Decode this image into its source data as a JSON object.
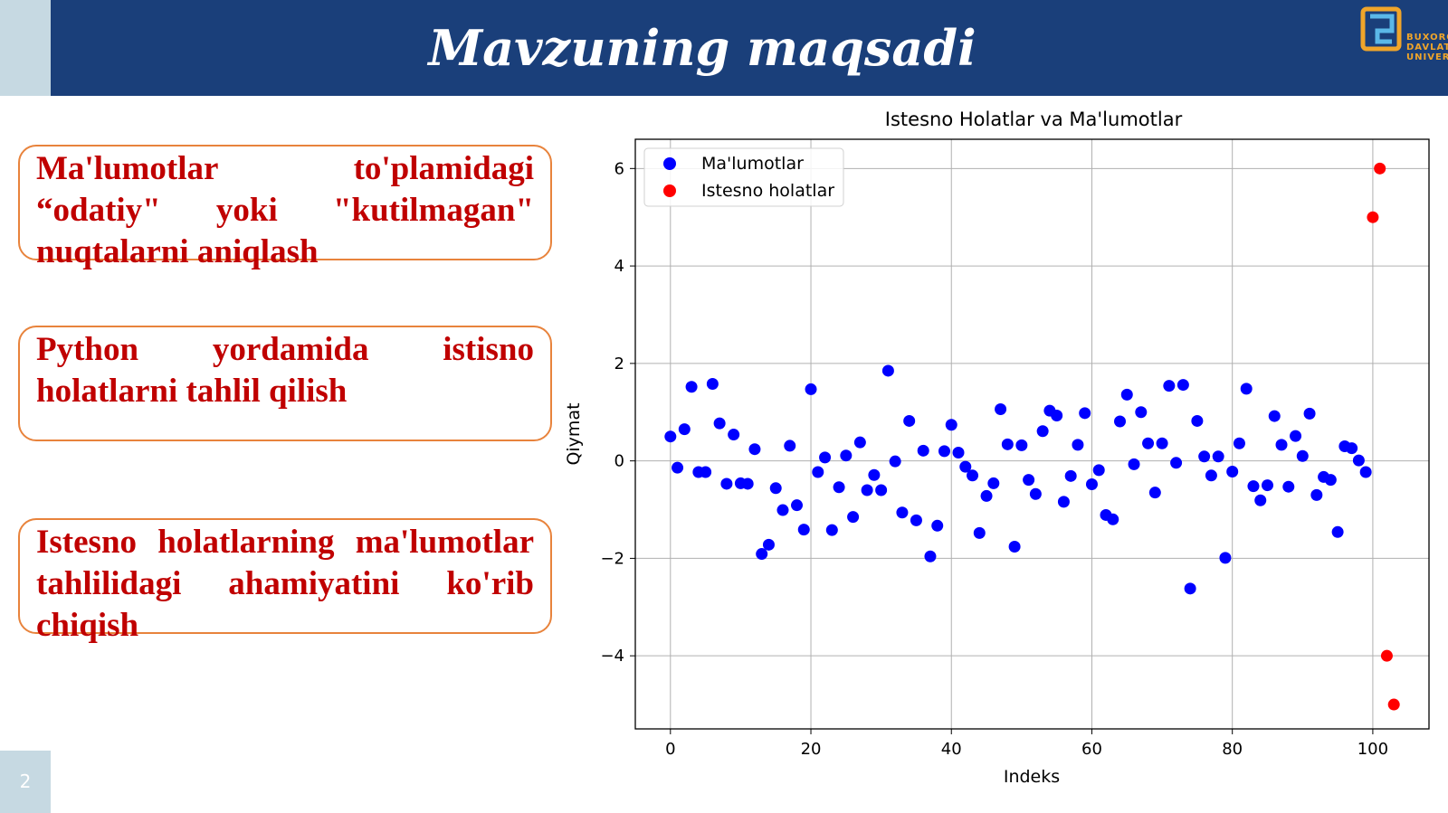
{
  "slide": {
    "title": "Mavzuning maqsadi",
    "page_number": "2",
    "logo_lines": [
      "BUXORO",
      "DAVLAT",
      "UNIVERSITETI"
    ]
  },
  "boxes": [
    {
      "text": "Ma'lumotlar to'plamidagi “odatiy\" yoki \"kutilmagan\" nuqtalarni aniqlash"
    },
    {
      "text": "Python yordamida istisno holatlarni tahlil qilish"
    },
    {
      "text": "Istesno holatlarning ma'lumotlar tahlilidagi ahamiyatini ko'rib chiqish"
    }
  ],
  "colors": {
    "banner": "#1a3f7a",
    "side_strip": "#c6d9e2",
    "box_border": "#e8833c",
    "box_text": "#c00000",
    "series_normal": "#0000ff",
    "series_outlier": "#ff0000"
  },
  "chart_data": {
    "type": "scatter",
    "title": "Istesno Holatlar va Ma'lumotlar",
    "xlabel": "Indeks",
    "ylabel": "Qiymat",
    "xlim": [
      -5,
      108
    ],
    "ylim": [
      -5.5,
      6.6
    ],
    "xticks": [
      0,
      20,
      40,
      60,
      80,
      100
    ],
    "yticks": [
      -4,
      -2,
      0,
      2,
      4,
      6
    ],
    "ytick_labels": [
      "−4",
      "−2",
      "0",
      "2",
      "4",
      "6"
    ],
    "grid": true,
    "legend_position": "upper-left",
    "series": [
      {
        "name": "Ma'lumotlar",
        "color": "#0000ff",
        "x": [
          0,
          1,
          2,
          3,
          4,
          5,
          6,
          7,
          8,
          9,
          10,
          11,
          12,
          13,
          14,
          15,
          16,
          17,
          18,
          19,
          20,
          21,
          22,
          23,
          24,
          25,
          26,
          27,
          28,
          29,
          30,
          31,
          32,
          33,
          34,
          35,
          36,
          37,
          38,
          39,
          40,
          41,
          42,
          43,
          44,
          45,
          46,
          47,
          48,
          49,
          50,
          51,
          52,
          53,
          54,
          55,
          56,
          57,
          58,
          59,
          60,
          61,
          62,
          63,
          64,
          65,
          66,
          67,
          68,
          69,
          70,
          71,
          72,
          73,
          74,
          75,
          76,
          77,
          78,
          79,
          80,
          81,
          82,
          83,
          84,
          85,
          86,
          87,
          88,
          89,
          90,
          91,
          92,
          93,
          94,
          95,
          96,
          97,
          98,
          99
        ],
        "y": [
          0.5,
          -0.14,
          0.65,
          1.52,
          -0.23,
          -0.23,
          1.58,
          0.77,
          -0.47,
          0.54,
          -0.46,
          -0.47,
          0.24,
          -1.91,
          -1.72,
          -0.56,
          -1.01,
          0.31,
          -0.91,
          -1.41,
          1.47,
          -0.23,
          0.07,
          -1.42,
          -0.54,
          0.11,
          -1.15,
          0.38,
          -0.6,
          -0.29,
          -0.6,
          1.85,
          -0.01,
          -1.06,
          0.82,
          -1.22,
          0.21,
          -1.96,
          -1.33,
          0.2,
          0.74,
          0.17,
          -0.12,
          -0.3,
          -1.48,
          -0.72,
          -0.46,
          1.06,
          0.34,
          -1.76,
          0.32,
          -0.39,
          -0.68,
          0.61,
          1.03,
          0.93,
          -0.84,
          -0.31,
          0.33,
          0.98,
          -0.48,
          -0.19,
          -1.11,
          -1.2,
          0.81,
          1.36,
          -0.07,
          1.0,
          0.36,
          -0.65,
          0.36,
          1.54,
          -0.04,
          1.56,
          -2.62,
          0.82,
          0.09,
          -0.3,
          0.09,
          -1.99,
          -0.22,
          0.36,
          1.48,
          -0.52,
          -0.81,
          -0.5,
          0.92,
          0.33,
          -0.53,
          0.51,
          0.1,
          0.97,
          -0.7,
          -0.33,
          -0.39,
          -1.46,
          0.3,
          0.26,
          0.01,
          -0.23
        ]
      },
      {
        "name": "Istesno holatlar",
        "color": "#ff0000",
        "x": [
          101,
          100,
          102,
          103
        ],
        "y": [
          6,
          5,
          -4,
          -5
        ]
      }
    ]
  }
}
